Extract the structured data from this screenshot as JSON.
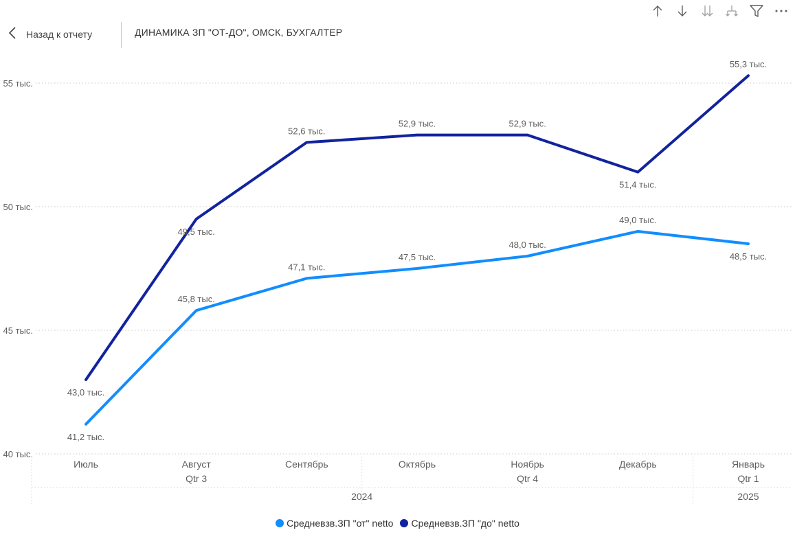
{
  "header": {
    "back_label": "Назад к отчету",
    "title": "ДИНАМИКА ЗП \"ОТ-ДО\", ОМСК, БУХГАЛТЕР"
  },
  "toolbar": {
    "icons": [
      "arrow-up-icon",
      "arrow-down-icon",
      "double-arrow-down-icon",
      "expand-hierarchy-icon",
      "filter-icon",
      "more-options-icon"
    ]
  },
  "colors": {
    "series_from": "#118DFF",
    "series_to": "#12239E",
    "grid": "#c8c8c8",
    "label": "#605E5C"
  },
  "chart_data": {
    "type": "line",
    "categories": [
      "Июль",
      "Август",
      "Сентябрь",
      "Октябрь",
      "Ноябрь",
      "Декабрь",
      "Январь"
    ],
    "quarter_labels": [
      {
        "label": "Qtr 3",
        "from": 0,
        "to": 2
      },
      {
        "label": "Qtr 4",
        "from": 3,
        "to": 5
      },
      {
        "label": "Qtr 1",
        "from": 6,
        "to": 6
      }
    ],
    "year_labels": [
      {
        "label": "2024",
        "from": 0,
        "to": 5
      },
      {
        "label": "2025",
        "from": 6,
        "to": 6
      }
    ],
    "y_ticks": [
      40000,
      45000,
      50000,
      55000
    ],
    "y_tick_labels": [
      "40 тыс.",
      "45 тыс.",
      "50 тыс.",
      "55 тыс."
    ],
    "ylim": [
      40000,
      55800
    ],
    "grid": true,
    "legend_position": "bottom",
    "series": [
      {
        "name": "Средневзв.ЗП \"от\" netto",
        "values": [
          41200,
          45800,
          47100,
          47500,
          48000,
          49000,
          48500
        ],
        "labels": [
          "41,2 тыс.",
          "45,8 тыс.",
          "47,1 тыс.",
          "47,5 тыс.",
          "48,0 тыс.",
          "49,0 тыс.",
          "48,5 тыс."
        ]
      },
      {
        "name": "Средневзв.ЗП \"до\" netto",
        "values": [
          43000,
          49500,
          52600,
          52900,
          52900,
          51400,
          55300
        ],
        "labels": [
          "43,0 тыс.",
          "49,5 тыс.",
          "52,6 тыс.",
          "52,9 тыс.",
          "52,9 тыс.",
          "51,4 тыс.",
          "55,3 тыс."
        ]
      }
    ]
  }
}
